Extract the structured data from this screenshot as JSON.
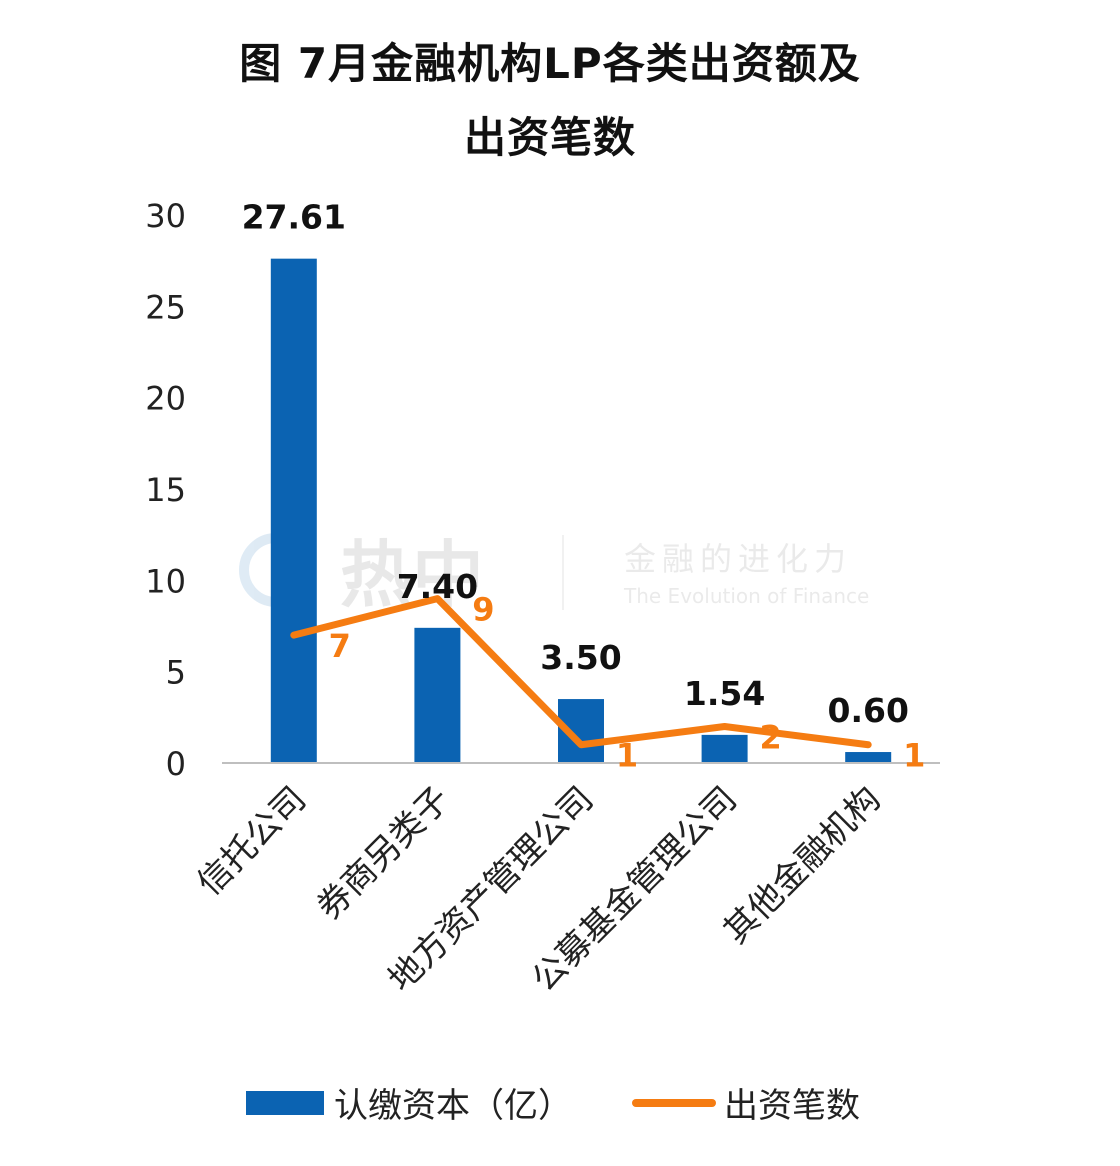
{
  "title_lines": [
    "图 7月金融机构LP各类出资额及",
    "出资笔数"
  ],
  "watermark": {
    "logo_text": "热中",
    "tagline": "金融的进化力",
    "tagline_en": "The Evolution of Finance"
  },
  "legend": {
    "bar_label": "认缴资本（亿）",
    "line_label": "出资笔数"
  },
  "colors": {
    "bar": "#0b63b2",
    "line": "#f57c12",
    "axis": "#bfbfbf"
  },
  "chart_data": {
    "type": "bar",
    "categories": [
      "信托公司",
      "券商另类子",
      "地方资产管理公司",
      "公募基金管理公司",
      "其他金融机构"
    ],
    "series": [
      {
        "name": "认缴资本（亿）",
        "type": "bar",
        "values": [
          27.61,
          7.4,
          3.5,
          1.54,
          0.6
        ],
        "labels": [
          "27.61",
          "7.40",
          "3.50",
          "1.54",
          "0.60"
        ]
      },
      {
        "name": "出资笔数",
        "type": "line",
        "values": [
          7,
          9,
          1,
          2,
          1
        ],
        "labels": [
          "7",
          "9",
          "1",
          "2",
          "1"
        ]
      }
    ],
    "y_ticks": [
      "0",
      "5",
      "10",
      "15",
      "20",
      "25",
      "30"
    ],
    "ylim": [
      0,
      30
    ],
    "legend_position": "bottom",
    "grid": false
  }
}
